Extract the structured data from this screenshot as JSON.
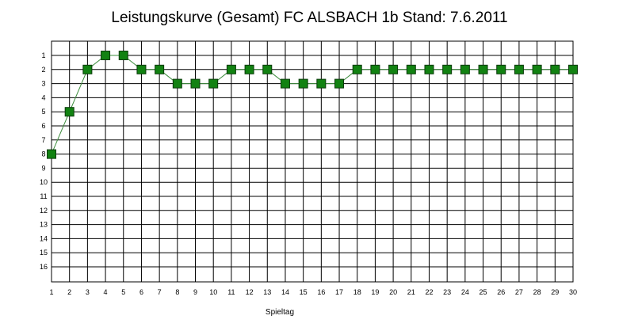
{
  "chart_data": {
    "type": "line",
    "title": "Leistungskurve (Gesamt) FC ALSBACH 1b Stand: 7.6.2011",
    "xlabel": "Spieltag",
    "ylabel": "",
    "x": [
      1,
      2,
      3,
      4,
      5,
      6,
      7,
      8,
      9,
      10,
      11,
      12,
      13,
      14,
      15,
      16,
      17,
      18,
      19,
      20,
      21,
      22,
      23,
      24,
      25,
      26,
      27,
      28,
      29,
      30
    ],
    "y_ticks": [
      1,
      2,
      3,
      4,
      5,
      6,
      7,
      8,
      9,
      10,
      11,
      12,
      13,
      14,
      15,
      16
    ],
    "ylim": [
      1,
      16
    ],
    "y_inverted": true,
    "grid": true,
    "series": [
      {
        "values": [
          8,
          5,
          2,
          1,
          1,
          2,
          2,
          3,
          3,
          3,
          2,
          2,
          2,
          3,
          3,
          3,
          3,
          2,
          2,
          2,
          2,
          2,
          2,
          2,
          2,
          2,
          2,
          2,
          2,
          2
        ],
        "line_color": "#3c8c3c",
        "marker_color": "#128212"
      }
    ]
  }
}
